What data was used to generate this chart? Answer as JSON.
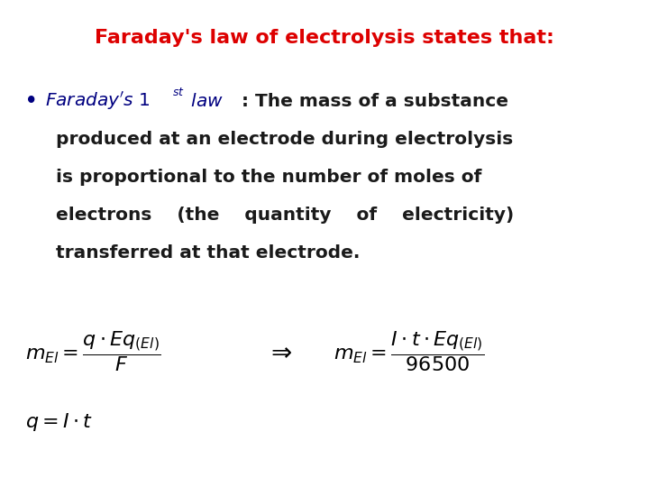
{
  "background_color": "#ffffff",
  "title": "Faraday's law of electrolysis states that:",
  "title_color": "#dd0000",
  "title_fontsize": 16,
  "bullet_color": "#000080",
  "body_color": "#1a1a1a",
  "formula_color": "#000000",
  "figsize": [
    7.2,
    5.4
  ],
  "dpi": 100,
  "formula1_lhs": "$m_{El} = \\dfrac{q \\cdot Eq_{(El)}}{F}$",
  "formula_arrow": "$\\Rightarrow$",
  "formula2_rhs": "$m_{El} = \\dfrac{I \\cdot t \\cdot Eq_{(El)}}{96500}$",
  "formula3": "$q = I \\cdot t$",
  "body_lines": [
    "produced at an electrode during electrolysis",
    "is proportional to the number of moles of",
    "electrons    (the    quantity    of    electricity)",
    "transferred at that electrode."
  ]
}
